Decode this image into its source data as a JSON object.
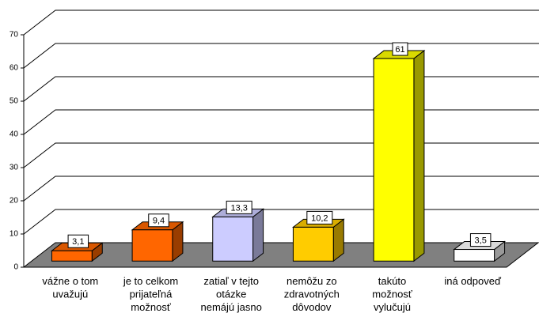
{
  "chart_data": {
    "type": "bar3d",
    "categories": [
      "vážne o tom\nuvažujú",
      "je to celkom\nprijateľná\nmožnosť",
      "zatiaľ v tejto\notázke\nnemájú jasno",
      "nemôžu zo\nzdravotných\ndôvodov",
      "takúto\nmožnosť\nvylučujú",
      "iná odpoveď"
    ],
    "values": [
      3.1,
      9.4,
      13.3,
      10.2,
      61,
      3.5
    ],
    "value_labels": [
      "3,1",
      "9,4",
      "13,3",
      "10,2",
      "61",
      "3,5"
    ],
    "colors": [
      "#ff6600",
      "#ff6600",
      "#ccccff",
      "#ffcc00",
      "#ffff00",
      "#ffffff"
    ],
    "ylim": [
      0,
      70
    ],
    "yticks": [
      0,
      10,
      20,
      30,
      40,
      50,
      60,
      70
    ],
    "grid": true
  }
}
